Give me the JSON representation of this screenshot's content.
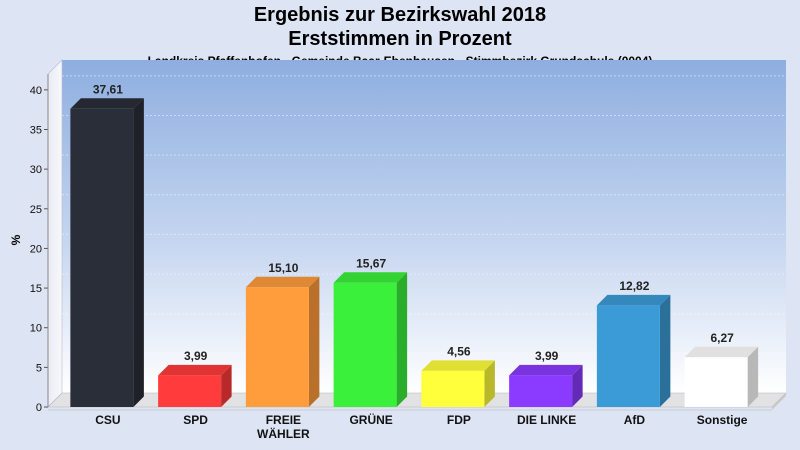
{
  "chart_data": {
    "type": "bar",
    "title": "Ergebnis zur Bezirkswahl 2018",
    "subtitle": "Erststimmen in Prozent",
    "caption": "Landkreis Pfaffenhofen - Gemeinde Baar-Ebenhausen - Stimmbezirk Grundschule (0004)",
    "ylabel": "%",
    "ylim": [
      0,
      42
    ],
    "yticks": [
      0,
      5,
      10,
      15,
      20,
      25,
      30,
      35,
      40
    ],
    "categories": [
      "CSU",
      "SPD",
      "FREIE WÄHLER",
      "GRÜNE",
      "FDP",
      "DIE LINKE",
      "AfD",
      "Sonstige"
    ],
    "category_lines": [
      [
        "CSU"
      ],
      [
        "SPD"
      ],
      [
        "FREIE",
        "WÄHLER"
      ],
      [
        "GRÜNE"
      ],
      [
        "FDP"
      ],
      [
        "DIE LINKE"
      ],
      [
        "AfD"
      ],
      [
        "Sonstige"
      ]
    ],
    "values": [
      37.61,
      3.99,
      15.1,
      15.67,
      4.56,
      3.99,
      12.82,
      6.27
    ],
    "value_labels": [
      "37,61",
      "3,99",
      "15,10",
      "15,67",
      "4,56",
      "3,99",
      "12,82",
      "6,27"
    ],
    "colors": [
      "#2a2e38",
      "#ff3b3b",
      "#ff9c3b",
      "#3bf03b",
      "#ffff3b",
      "#8a3bff",
      "#3b9bd6",
      "#ffffff"
    ],
    "grid": true,
    "legend": "none"
  }
}
